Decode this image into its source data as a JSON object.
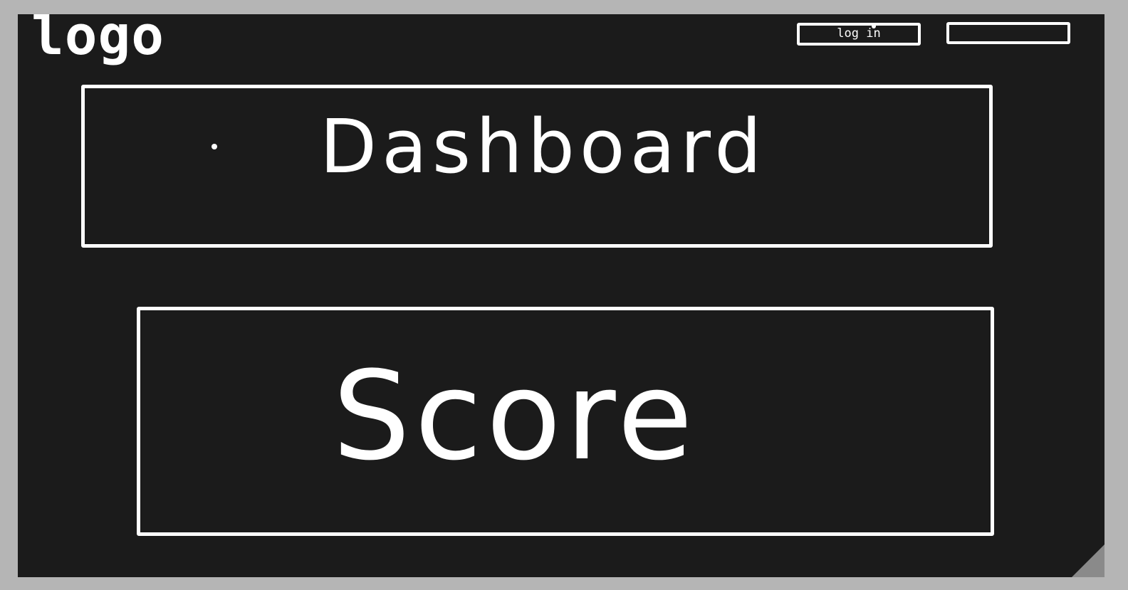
{
  "header": {
    "logo_text": "logo",
    "login_label": "log in",
    "second_button_label": ""
  },
  "dashboard": {
    "title": "Dashboard"
  },
  "score": {
    "title": "Score"
  },
  "colors": {
    "page_background": "#b5b5b5",
    "screen_background": "#1b1b1b",
    "foreground": "#ffffff",
    "resize_grip": "#8a8a8a"
  }
}
